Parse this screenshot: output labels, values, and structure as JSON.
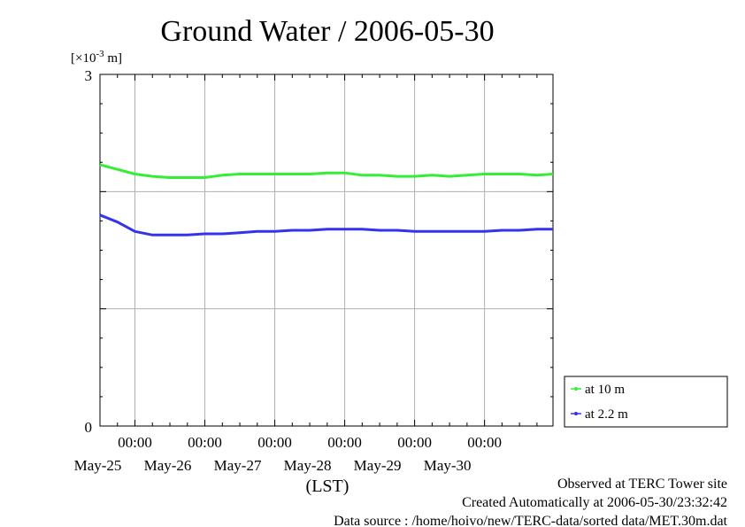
{
  "chart_data": {
    "type": "line",
    "title": "Ground Water / 2006-05-30",
    "ylabel_prefix": "[×10",
    "ylabel_exp": "-3",
    "ylabel_suffix": " m]",
    "xlabel": "(LST)",
    "ylim": [
      0,
      3
    ],
    "yticks": [
      "0",
      "3"
    ],
    "xlim": [
      "2006-05-24T12:00",
      "2006-05-30T23:30"
    ],
    "xticks": [
      {
        "time": "00:00",
        "date": "May-25"
      },
      {
        "time": "00:00",
        "date": "May-26"
      },
      {
        "time": "00:00",
        "date": "May-27"
      },
      {
        "time": "00:00",
        "date": "May-28"
      },
      {
        "time": "00:00",
        "date": "May-29"
      },
      {
        "time": "00:00",
        "date": "May-30"
      }
    ],
    "grid": true,
    "legend_position": "bottom-right outside",
    "series": [
      {
        "name": "at 10 m",
        "color": "#33ee33",
        "x": [
          "2006-05-24T12:00",
          "2006-05-24T18:00",
          "2006-05-25T00:00",
          "2006-05-25T06:00",
          "2006-05-25T12:00",
          "2006-05-25T18:00",
          "2006-05-26T00:00",
          "2006-05-26T06:00",
          "2006-05-26T12:00",
          "2006-05-26T18:00",
          "2006-05-27T00:00",
          "2006-05-27T06:00",
          "2006-05-27T12:00",
          "2006-05-27T18:00",
          "2006-05-28T00:00",
          "2006-05-28T06:00",
          "2006-05-28T12:00",
          "2006-05-28T18:00",
          "2006-05-29T00:00",
          "2006-05-29T06:00",
          "2006-05-29T12:00",
          "2006-05-29T18:00",
          "2006-05-30T00:00",
          "2006-05-30T06:00",
          "2006-05-30T12:00",
          "2006-05-30T18:00",
          "2006-05-30T23:30"
        ],
        "values": [
          2.23,
          2.19,
          2.15,
          2.13,
          2.12,
          2.12,
          2.12,
          2.14,
          2.15,
          2.15,
          2.15,
          2.15,
          2.15,
          2.16,
          2.16,
          2.14,
          2.14,
          2.13,
          2.13,
          2.14,
          2.13,
          2.14,
          2.15,
          2.15,
          2.15,
          2.14,
          2.15
        ]
      },
      {
        "name": "at 2.2 m",
        "color": "#3333ee",
        "x": [
          "2006-05-24T12:00",
          "2006-05-24T18:00",
          "2006-05-25T00:00",
          "2006-05-25T06:00",
          "2006-05-25T12:00",
          "2006-05-25T18:00",
          "2006-05-26T00:00",
          "2006-05-26T06:00",
          "2006-05-26T12:00",
          "2006-05-26T18:00",
          "2006-05-27T00:00",
          "2006-05-27T06:00",
          "2006-05-27T12:00",
          "2006-05-27T18:00",
          "2006-05-28T00:00",
          "2006-05-28T06:00",
          "2006-05-28T12:00",
          "2006-05-28T18:00",
          "2006-05-29T00:00",
          "2006-05-29T06:00",
          "2006-05-29T12:00",
          "2006-05-29T18:00",
          "2006-05-30T00:00",
          "2006-05-30T06:00",
          "2006-05-30T12:00",
          "2006-05-30T18:00",
          "2006-05-30T23:30"
        ],
        "values": [
          1.8,
          1.74,
          1.66,
          1.63,
          1.63,
          1.63,
          1.64,
          1.64,
          1.65,
          1.66,
          1.66,
          1.67,
          1.67,
          1.68,
          1.68,
          1.68,
          1.67,
          1.67,
          1.66,
          1.66,
          1.66,
          1.66,
          1.66,
          1.67,
          1.67,
          1.68,
          1.68
        ]
      }
    ]
  },
  "footer": {
    "observed": "Observed at TERC Tower site",
    "created": "Created Automatically at 2006-05-30/23:32:42",
    "source": "Data source : /home/hoivo/new/TERC-data/sorted data/MET.30m.dat"
  }
}
